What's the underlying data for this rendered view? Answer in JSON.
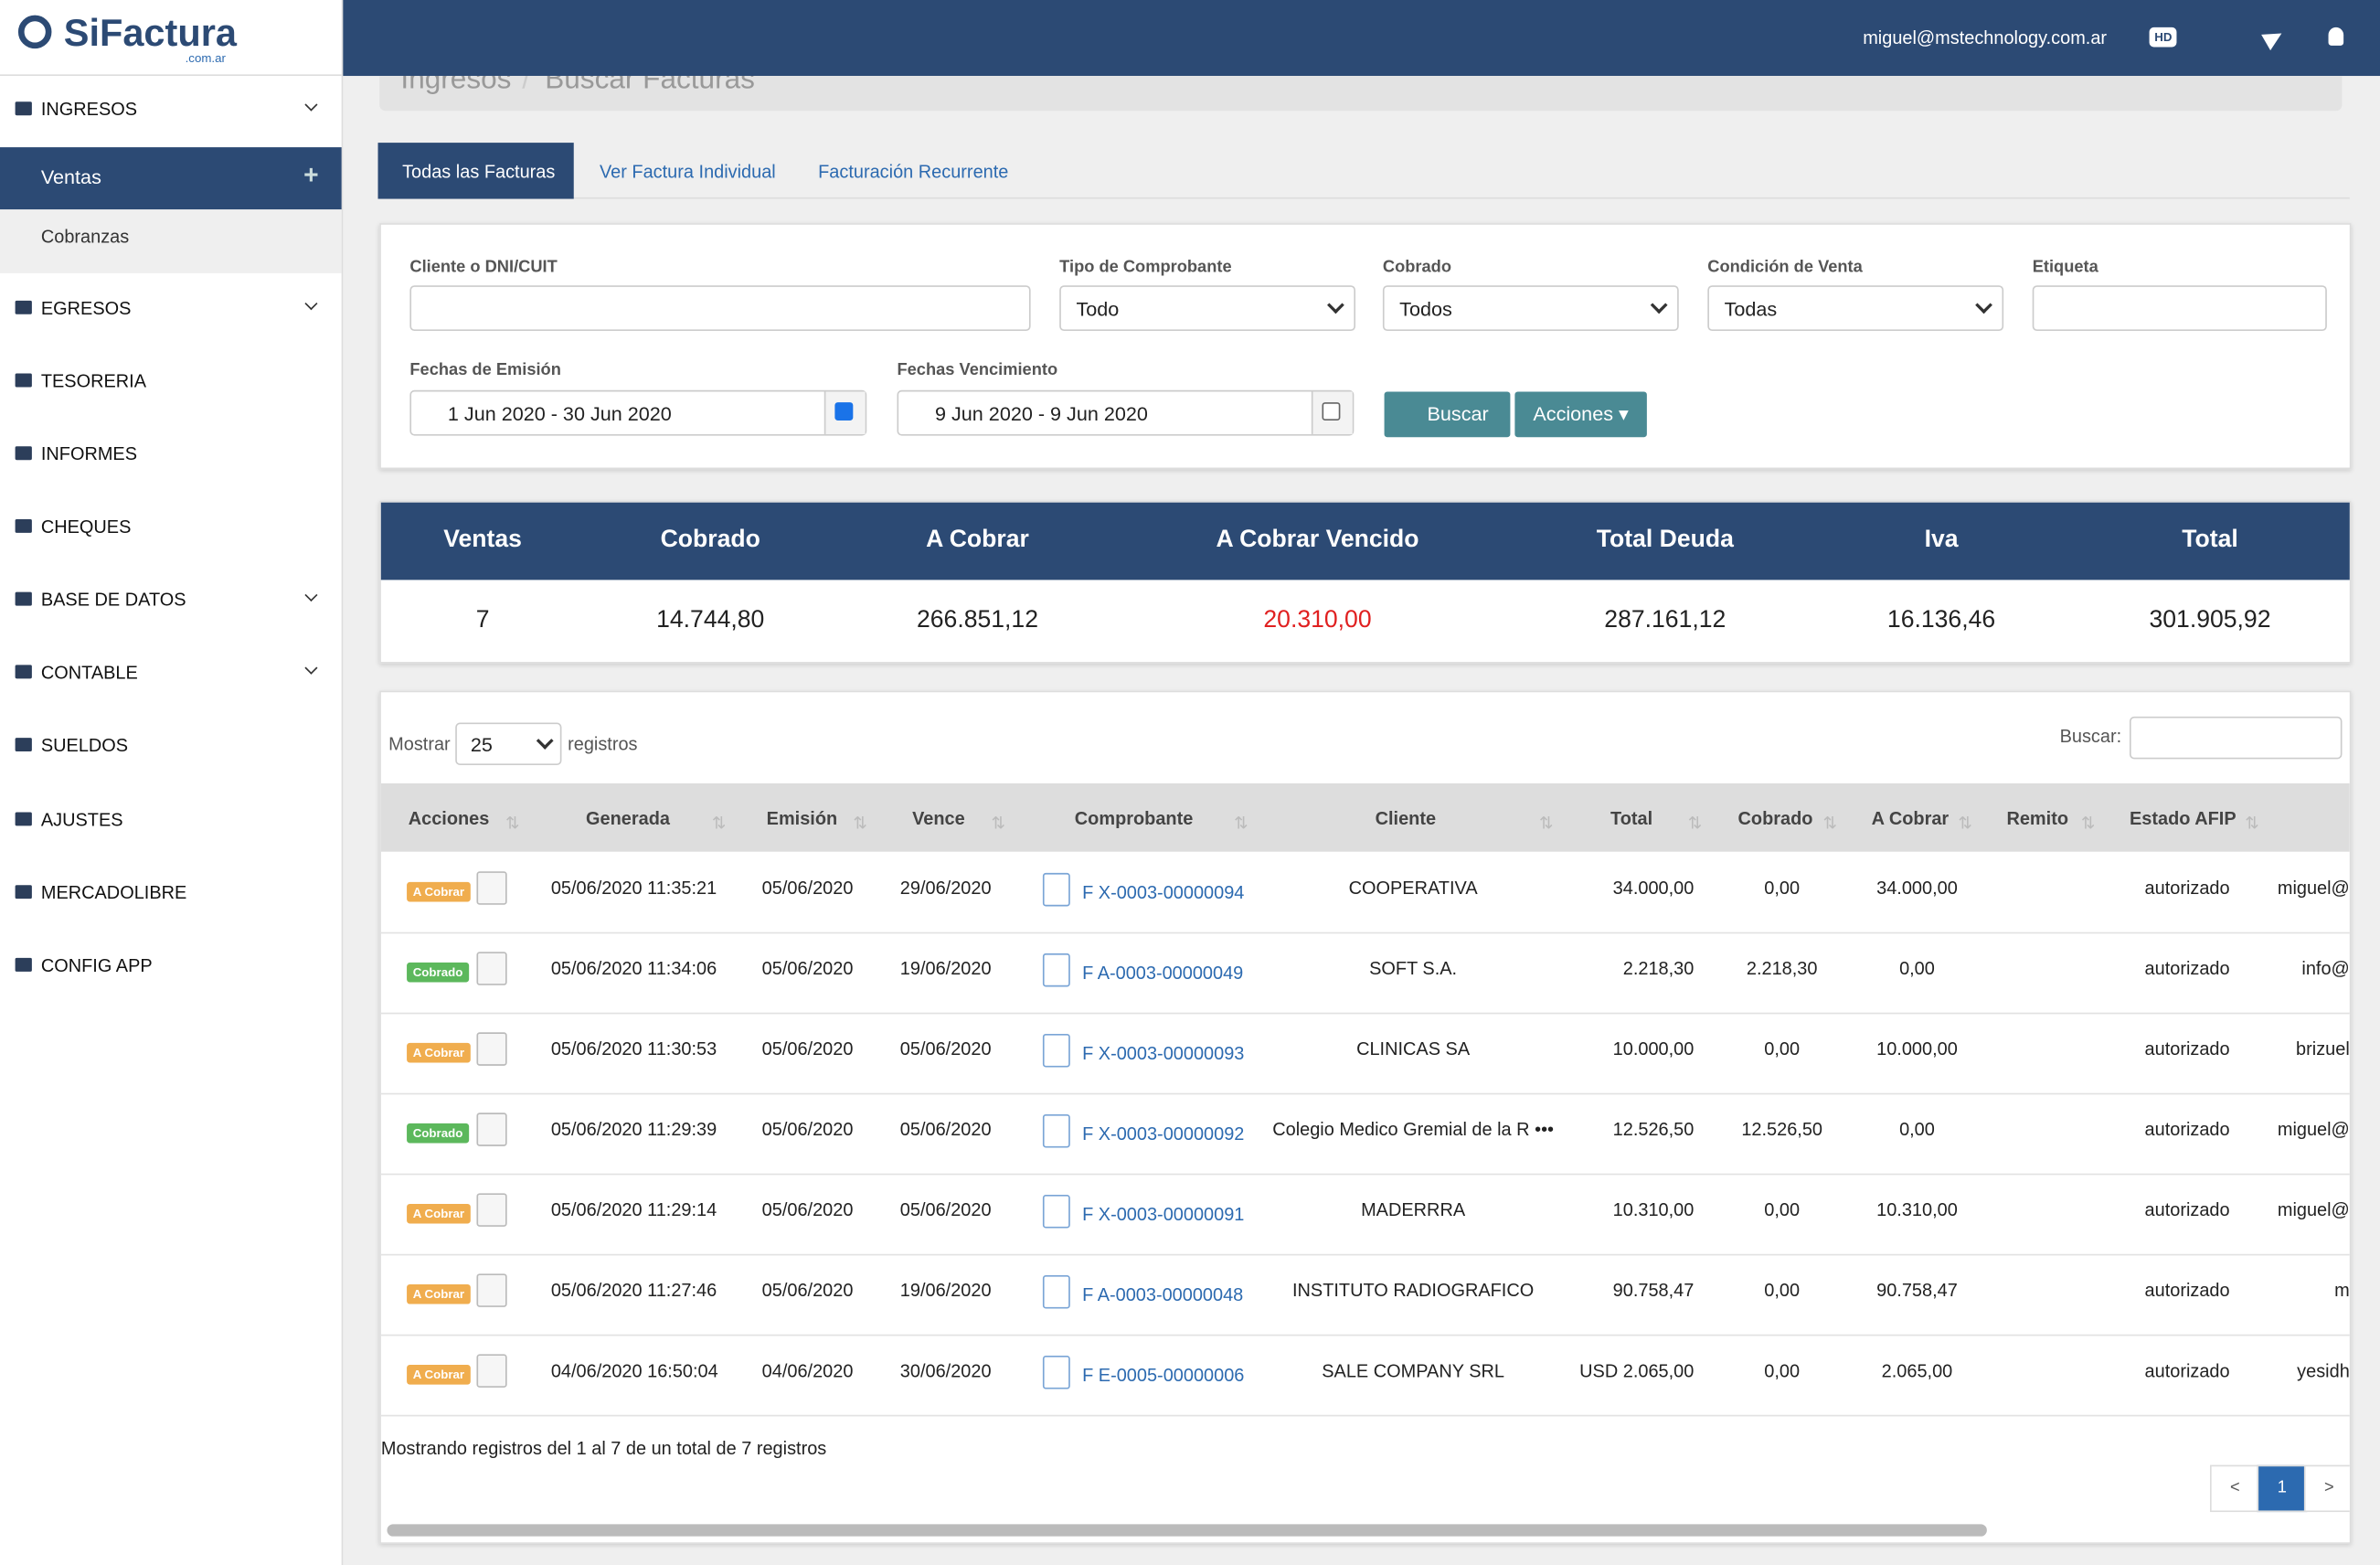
{
  "brand": {
    "name": "SiFactura",
    "suffix": ".com.ar"
  },
  "header": {
    "email": "miguel@mstechnology.com.ar",
    "hd": "HD"
  },
  "breadcrumb": [
    "Ingresos",
    "Buscar Facturas"
  ],
  "sidebar": {
    "items": [
      {
        "label": "INGRESOS",
        "expandable": true
      },
      {
        "label": "EGRESOS",
        "expandable": true
      },
      {
        "label": "TESORERIA",
        "expandable": false
      },
      {
        "label": "INFORMES",
        "expandable": false
      },
      {
        "label": "CHEQUES",
        "expandable": false
      },
      {
        "label": "BASE DE DATOS",
        "expandable": true
      },
      {
        "label": "CONTABLE",
        "expandable": true
      },
      {
        "label": "SUELDOS",
        "expandable": false
      },
      {
        "label": "AJUSTES",
        "expandable": false
      },
      {
        "label": "MERCADOLIBRE",
        "expandable": false
      },
      {
        "label": "CONFIG APP",
        "expandable": false
      }
    ],
    "sub": [
      "Ventas",
      "Cobranzas"
    ]
  },
  "tabs": [
    "Todas las Facturas",
    "Ver Factura Individual",
    "Facturación Recurrente"
  ],
  "filters": {
    "cliente": "Cliente o DNI/CUIT",
    "tipo": {
      "label": "Tipo de Comprobante",
      "value": "Todo"
    },
    "cobrado": {
      "label": "Cobrado",
      "value": "Todos"
    },
    "condicion": {
      "label": "Condición de Venta",
      "value": "Todas"
    },
    "etiqueta": "Etiqueta",
    "emision": {
      "label": "Fechas de Emisión",
      "value": "1 Jun 2020 - 30 Jun 2020"
    },
    "vencimiento": {
      "label": "Fechas Vencimiento",
      "value": "9 Jun 2020 - 9 Jun 2020"
    },
    "buscar": "Buscar",
    "acciones": "Acciones"
  },
  "summary": {
    "headers": [
      "Ventas",
      "Cobrado",
      "A Cobrar",
      "A Cobrar Vencido",
      "Total Deuda",
      "Iva",
      "Total"
    ],
    "values": [
      "7",
      "14.744,80",
      "266.851,12",
      "20.310,00",
      "287.161,12",
      "16.136,46",
      "301.905,92"
    ]
  },
  "table": {
    "show": "Mostrar",
    "length": "25",
    "records": "registros",
    "search": "Buscar:",
    "columns": [
      "Acciones",
      "Generada",
      "Emisión",
      "Vence",
      "Comprobante",
      "Cliente",
      "Total",
      "Cobrado",
      "A Cobrar",
      "Remito",
      "Estado AFIP"
    ],
    "rows": [
      {
        "status": "A Cobrar",
        "generada": "05/06/2020 11:35:21",
        "emision": "05/06/2020",
        "vence": "29/06/2020",
        "comprobante": "F X-0003-00000094",
        "cliente": "COOPERATIVA",
        "total": "34.000,00",
        "cobrado": "0,00",
        "acobrar": "34.000,00",
        "estado": "autorizado",
        "user": "miguel@"
      },
      {
        "status": "Cobrado",
        "generada": "05/06/2020 11:34:06",
        "emision": "05/06/2020",
        "vence": "19/06/2020",
        "comprobante": "F A-0003-00000049",
        "cliente": "SOFT S.A.",
        "total": "2.218,30",
        "cobrado": "2.218,30",
        "acobrar": "0,00",
        "estado": "autorizado",
        "user": "info@"
      },
      {
        "status": "A Cobrar",
        "generada": "05/06/2020 11:30:53",
        "emision": "05/06/2020",
        "vence": "05/06/2020",
        "comprobante": "F X-0003-00000093",
        "cliente": "CLINICAS SA",
        "total": "10.000,00",
        "cobrado": "0,00",
        "acobrar": "10.000,00",
        "estado": "autorizado",
        "user": "brizuel"
      },
      {
        "status": "Cobrado",
        "generada": "05/06/2020 11:29:39",
        "emision": "05/06/2020",
        "vence": "05/06/2020",
        "comprobante": "F X-0003-00000092",
        "cliente": "Colegio Medico Gremial de la R •••",
        "total": "12.526,50",
        "cobrado": "12.526,50",
        "acobrar": "0,00",
        "estado": "autorizado",
        "user": "miguel@"
      },
      {
        "status": "A Cobrar",
        "generada": "05/06/2020 11:29:14",
        "emision": "05/06/2020",
        "vence": "05/06/2020",
        "comprobante": "F X-0003-00000091",
        "cliente": "MADERRRA",
        "total": "10.310,00",
        "cobrado": "0,00",
        "acobrar": "10.310,00",
        "estado": "autorizado",
        "user": "miguel@"
      },
      {
        "status": "A Cobrar",
        "generada": "05/06/2020 11:27:46",
        "emision": "05/06/2020",
        "vence": "19/06/2020",
        "comprobante": "F A-0003-00000048",
        "cliente": "INSTITUTO RADIOGRAFICO",
        "total": "90.758,47",
        "cobrado": "0,00",
        "acobrar": "90.758,47",
        "estado": "autorizado",
        "user": "m"
      },
      {
        "status": "A Cobrar",
        "generada": "04/06/2020 16:50:04",
        "emision": "04/06/2020",
        "vence": "30/06/2020",
        "comprobante": "F E-0005-00000006",
        "cliente": "SALE COMPANY SRL",
        "total": "USD 2.065,00",
        "cobrado": "0,00",
        "acobrar": "2.065,00",
        "estado": "autorizado",
        "user": "yesidh"
      }
    ],
    "info": "Mostrando registros del 1 al 7 de un total de 7 registros",
    "pages": [
      "<",
      "1",
      ">"
    ]
  }
}
